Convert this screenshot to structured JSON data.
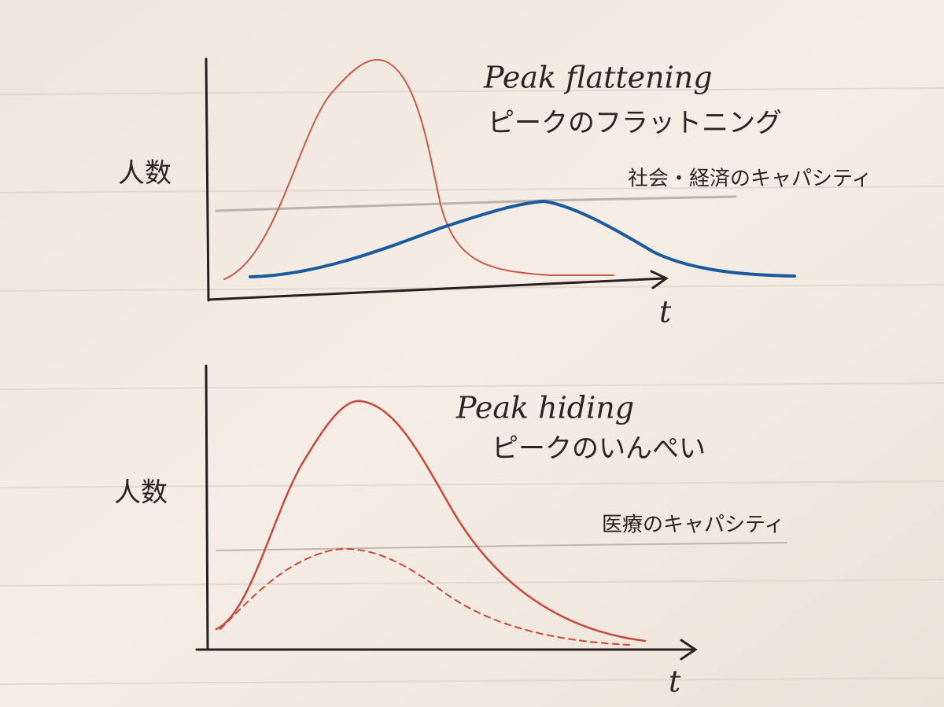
{
  "panels": [
    {
      "title": "Peak flattening",
      "subtitle": "ピークのフラットニング",
      "y_label": "人数",
      "capacity_label": "社会・経済のキャパシティ",
      "x_label": "t"
    },
    {
      "title": "Peak hiding",
      "subtitle": "ピークのいんぺい",
      "y_label": "人数",
      "capacity_label": "医療のキャパシティ",
      "x_label": "t"
    }
  ]
}
